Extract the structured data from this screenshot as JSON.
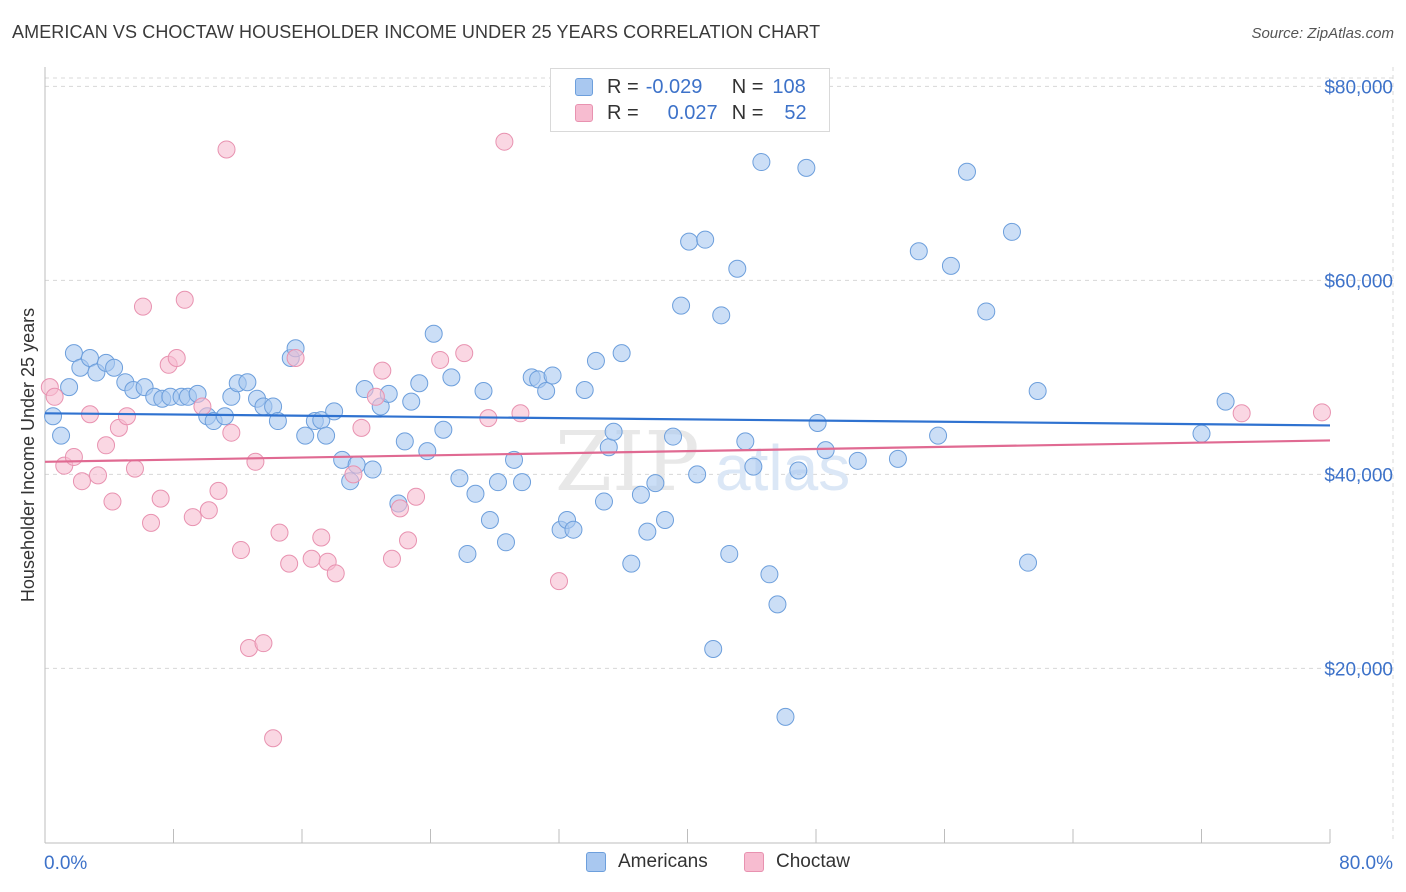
{
  "title": "AMERICAN VS CHOCTAW HOUSEHOLDER INCOME UNDER 25 YEARS CORRELATION CHART",
  "source": "Source: ZipAtlas.com",
  "watermark": {
    "zip": "ZIP",
    "atlas": "atlas"
  },
  "legend": {
    "americans": {
      "r_label": "R =",
      "r_value": "-0.029",
      "n_label": "N =",
      "n_value": "108"
    },
    "choctaw": {
      "r_label": "R =",
      "r_value": "0.027",
      "n_label": "N =",
      "n_value": "52"
    }
  },
  "bottom_legend": {
    "americans": "Americans",
    "choctaw": "Choctaw"
  },
  "colors": {
    "americans_fill": "#a9c8f0",
    "americans_stroke": "#6d9fdc",
    "americans_line": "#2f72d0",
    "choctaw_fill": "#f7bcd0",
    "choctaw_stroke": "#e892b0",
    "choctaw_line": "#e06a92",
    "axis_label": "#3d72c9",
    "grid": "#d8d8d8"
  },
  "chart_data": {
    "type": "scatter",
    "title": "AMERICAN VS CHOCTAW HOUSEHOLDER INCOME UNDER 25 YEARS CORRELATION CHART",
    "xlabel": "",
    "ylabel": "Householder Income Under 25 years",
    "xlim": [
      0,
      80
    ],
    "ylim": [
      2000,
      82000
    ],
    "x_tick_labels": [
      "0.0%",
      "80.0%"
    ],
    "y_ticks": [
      20000,
      40000,
      60000,
      80000
    ],
    "y_tick_labels": [
      "$20,000",
      "$40,000",
      "$60,000",
      "$80,000"
    ],
    "grid": true,
    "series": [
      {
        "name": "Americans",
        "trend": {
          "x": [
            0,
            80
          ],
          "y": [
            46300,
            45050
          ]
        },
        "points": [
          [
            0.5,
            46000
          ],
          [
            1.0,
            44000
          ],
          [
            1.5,
            49000
          ],
          [
            1.8,
            52500
          ],
          [
            2.2,
            51000
          ],
          [
            2.8,
            52000
          ],
          [
            3.2,
            50500
          ],
          [
            3.8,
            51500
          ],
          [
            4.3,
            51000
          ],
          [
            5.0,
            49500
          ],
          [
            5.5,
            48700
          ],
          [
            6.2,
            49000
          ],
          [
            6.8,
            48000
          ],
          [
            7.3,
            47800
          ],
          [
            7.8,
            48000
          ],
          [
            8.5,
            48000
          ],
          [
            8.9,
            48000
          ],
          [
            9.5,
            48300
          ],
          [
            10.1,
            46000
          ],
          [
            10.5,
            45500
          ],
          [
            11.2,
            46000
          ],
          [
            11.6,
            48000
          ],
          [
            12.0,
            49400
          ],
          [
            12.6,
            49500
          ],
          [
            13.2,
            47800
          ],
          [
            13.6,
            47000
          ],
          [
            14.2,
            47000
          ],
          [
            14.5,
            45500
          ],
          [
            15.3,
            52000
          ],
          [
            15.6,
            53000
          ],
          [
            16.2,
            44000
          ],
          [
            16.8,
            45500
          ],
          [
            17.2,
            45600
          ],
          [
            17.5,
            44000
          ],
          [
            18.0,
            46500
          ],
          [
            18.5,
            41500
          ],
          [
            19.0,
            39300
          ],
          [
            19.4,
            41000
          ],
          [
            19.9,
            48800
          ],
          [
            20.4,
            40500
          ],
          [
            20.9,
            47000
          ],
          [
            21.4,
            48300
          ],
          [
            22.0,
            37000
          ],
          [
            22.4,
            43400
          ],
          [
            22.8,
            47500
          ],
          [
            23.3,
            49400
          ],
          [
            23.8,
            42400
          ],
          [
            24.2,
            54500
          ],
          [
            24.8,
            44600
          ],
          [
            25.3,
            50000
          ],
          [
            25.8,
            39600
          ],
          [
            26.3,
            31800
          ],
          [
            26.8,
            38000
          ],
          [
            27.3,
            48600
          ],
          [
            27.7,
            35300
          ],
          [
            28.2,
            39200
          ],
          [
            28.7,
            33000
          ],
          [
            29.2,
            41500
          ],
          [
            29.7,
            39200
          ],
          [
            30.3,
            50000
          ],
          [
            30.7,
            49800
          ],
          [
            31.2,
            48600
          ],
          [
            31.6,
            50200
          ],
          [
            32.1,
            34300
          ],
          [
            32.5,
            35300
          ],
          [
            32.9,
            34300
          ],
          [
            33.6,
            48700
          ],
          [
            34.3,
            51700
          ],
          [
            34.8,
            37200
          ],
          [
            35.1,
            42800
          ],
          [
            35.4,
            44400
          ],
          [
            35.9,
            52500
          ],
          [
            36.5,
            30800
          ],
          [
            37.1,
            37900
          ],
          [
            37.5,
            34100
          ],
          [
            38.0,
            39100
          ],
          [
            38.6,
            35300
          ],
          [
            39.1,
            43900
          ],
          [
            39.6,
            57400
          ],
          [
            40.1,
            64000
          ],
          [
            40.6,
            40000
          ],
          [
            41.1,
            64200
          ],
          [
            41.6,
            22000
          ],
          [
            42.1,
            56400
          ],
          [
            42.6,
            31800
          ],
          [
            43.1,
            61200
          ],
          [
            43.6,
            43400
          ],
          [
            44.1,
            40800
          ],
          [
            44.6,
            72200
          ],
          [
            45.1,
            29700
          ],
          [
            45.6,
            26600
          ],
          [
            46.1,
            15000
          ],
          [
            46.9,
            40400
          ],
          [
            47.4,
            71600
          ],
          [
            48.1,
            45300
          ],
          [
            48.6,
            42500
          ],
          [
            50.6,
            41400
          ],
          [
            53.1,
            41600
          ],
          [
            54.4,
            63000
          ],
          [
            55.6,
            44000
          ],
          [
            56.4,
            61500
          ],
          [
            57.4,
            71200
          ],
          [
            58.6,
            56800
          ],
          [
            60.2,
            65000
          ],
          [
            61.2,
            30900
          ],
          [
            61.8,
            48600
          ],
          [
            72.0,
            44200
          ],
          [
            73.5,
            47500
          ]
        ]
      },
      {
        "name": "Choctaw",
        "trend": {
          "x": [
            0,
            80
          ],
          "y": [
            41300,
            43500
          ]
        },
        "points": [
          [
            0.3,
            49000
          ],
          [
            0.6,
            48000
          ],
          [
            1.2,
            40900
          ],
          [
            1.8,
            41800
          ],
          [
            2.3,
            39300
          ],
          [
            2.8,
            46200
          ],
          [
            3.3,
            39900
          ],
          [
            3.8,
            43000
          ],
          [
            4.2,
            37200
          ],
          [
            4.6,
            44800
          ],
          [
            5.1,
            46000
          ],
          [
            5.6,
            40600
          ],
          [
            6.1,
            57300
          ],
          [
            6.6,
            35000
          ],
          [
            7.2,
            37500
          ],
          [
            7.7,
            51300
          ],
          [
            8.2,
            52000
          ],
          [
            8.7,
            58000
          ],
          [
            9.2,
            35600
          ],
          [
            9.8,
            47000
          ],
          [
            10.2,
            36300
          ],
          [
            10.8,
            38300
          ],
          [
            11.3,
            73500
          ],
          [
            11.6,
            44300
          ],
          [
            12.2,
            32200
          ],
          [
            12.7,
            22100
          ],
          [
            13.1,
            41300
          ],
          [
            13.6,
            22600
          ],
          [
            14.2,
            12800
          ],
          [
            14.6,
            34000
          ],
          [
            15.2,
            30800
          ],
          [
            15.6,
            52000
          ],
          [
            16.6,
            31300
          ],
          [
            17.2,
            33500
          ],
          [
            17.6,
            31000
          ],
          [
            18.1,
            29800
          ],
          [
            19.2,
            40000
          ],
          [
            19.7,
            44800
          ],
          [
            20.6,
            48000
          ],
          [
            21.0,
            50700
          ],
          [
            21.6,
            31300
          ],
          [
            22.1,
            36500
          ],
          [
            22.6,
            33200
          ],
          [
            23.1,
            37700
          ],
          [
            24.6,
            51800
          ],
          [
            26.1,
            52500
          ],
          [
            27.6,
            45800
          ],
          [
            28.6,
            74300
          ],
          [
            29.6,
            46300
          ],
          [
            32.0,
            29000
          ],
          [
            74.5,
            46300
          ],
          [
            79.5,
            46400
          ]
        ]
      }
    ]
  }
}
